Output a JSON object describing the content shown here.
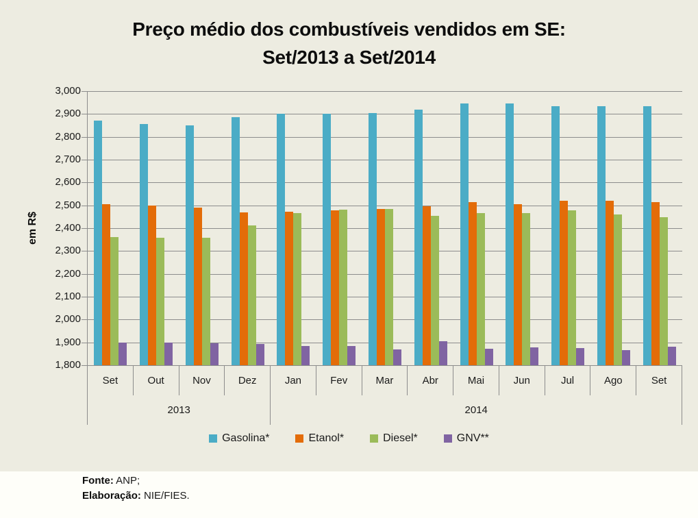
{
  "title": {
    "line1": "Preço médio dos combustíveis vendidos em SE:",
    "line2": "Set/2013 a Set/2014"
  },
  "y_axis": {
    "title": "em R$",
    "tick_labels": [
      "3,000",
      "2,900",
      "2,800",
      "2,700",
      "2,600",
      "2,500",
      "2,400",
      "2,300",
      "2,200",
      "2,100",
      "2,000",
      "1,900",
      "1,800"
    ]
  },
  "x_axis": {
    "months": [
      "Set",
      "Out",
      "Nov",
      "Dez",
      "Jan",
      "Fev",
      "Mar",
      "Abr",
      "Mai",
      "Jun",
      "Jul",
      "Ago",
      "Set"
    ],
    "year_groups": [
      {
        "label": "2013",
        "span": 4
      },
      {
        "label": "2014",
        "span": 9
      }
    ]
  },
  "legend_labels": [
    "Gasolina*",
    "Etanol*",
    "Diesel*",
    "GNV**"
  ],
  "footer": {
    "source_label": "Fonte:",
    "source_value": "ANP;",
    "elaboration_label": "Elaboração:",
    "elaboration_value": "NIE/FIES."
  },
  "colors": {
    "background": "#EDECE1",
    "footer_background": "#FEFEF9",
    "gridline": "#8C8C8C",
    "gasolina": "#4BACC6",
    "etanol": "#E36C09",
    "diesel": "#9BBB59",
    "gnv": "#8064A2"
  },
  "chart_data": {
    "type": "bar",
    "title": "Preço médio dos combustíveis vendidos em SE: Set/2013 a Set/2014",
    "xlabel": "",
    "ylabel": "em R$",
    "ylim": [
      1800,
      3000
    ],
    "ytick_step": 100,
    "grid": true,
    "legend_position": "bottom",
    "categories": [
      "Set",
      "Out",
      "Nov",
      "Dez",
      "Jan",
      "Fev",
      "Mar",
      "Abr",
      "Mai",
      "Jun",
      "Jul",
      "Ago",
      "Set"
    ],
    "category_year_groups": [
      {
        "label": "2013",
        "categories": [
          "Set",
          "Out",
          "Nov",
          "Dez"
        ]
      },
      {
        "label": "2014",
        "categories": [
          "Jan",
          "Fev",
          "Mar",
          "Abr",
          "Mai",
          "Jun",
          "Jul",
          "Ago",
          "Set"
        ]
      }
    ],
    "series": [
      {
        "name": "Gasolina*",
        "color": "#4BACC6",
        "values": [
          2870,
          2855,
          2850,
          2885,
          2900,
          2900,
          2905,
          2920,
          2945,
          2945,
          2935,
          2935,
          2935
        ]
      },
      {
        "name": "Etanol*",
        "color": "#E36C09",
        "values": [
          2505,
          2500,
          2490,
          2468,
          2472,
          2478,
          2485,
          2495,
          2515,
          2505,
          2520,
          2520,
          2515
        ]
      },
      {
        "name": "Diesel*",
        "color": "#9BBB59",
        "values": [
          2360,
          2357,
          2357,
          2412,
          2465,
          2482,
          2483,
          2455,
          2465,
          2465,
          2478,
          2460,
          2447
        ]
      },
      {
        "name": "GNV**",
        "color": "#8064A2",
        "values": [
          1900,
          1900,
          1895,
          1892,
          1885,
          1885,
          1870,
          1905,
          1872,
          1878,
          1876,
          1865,
          1880
        ]
      }
    ]
  }
}
